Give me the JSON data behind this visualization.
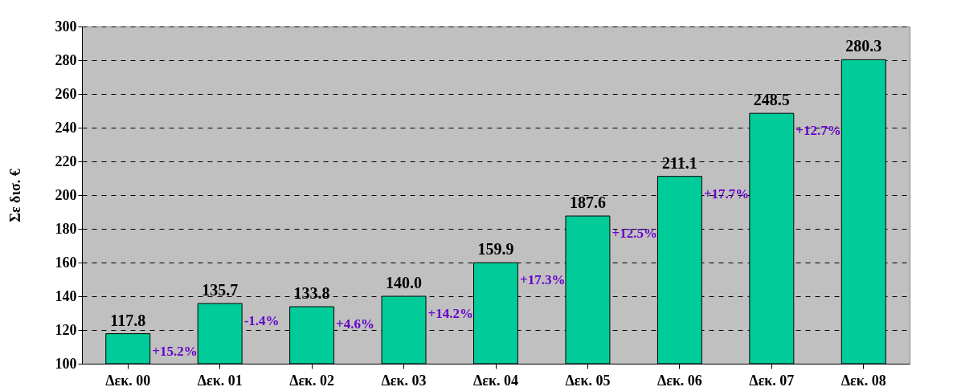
{
  "chart_data": {
    "type": "bar",
    "ylabel": "Σε δισ. €",
    "categories": [
      "Δεκ. 00",
      "Δεκ. 01",
      "Δεκ. 02",
      "Δεκ. 03",
      "Δεκ. 04",
      "Δεκ. 05",
      "Δεκ. 06",
      "Δεκ. 07",
      "Δεκ. 08"
    ],
    "values": [
      117.8,
      135.7,
      133.8,
      140.0,
      159.9,
      187.6,
      211.1,
      248.5,
      280.3
    ],
    "value_labels": [
      "117.8",
      "135.7",
      "133.8",
      "140.0",
      "159.9",
      "187.6",
      "211.1",
      "248.5",
      "280.3"
    ],
    "color": "#00cc99",
    "ylim": [
      100,
      300
    ],
    "yticks": [
      100,
      120,
      140,
      160,
      180,
      200,
      220,
      240,
      260,
      280,
      300
    ],
    "grid": "y",
    "annotations": [
      "+15.2%",
      "-1.4%",
      "+4.6%",
      "+14.2%",
      "+17.3%",
      "+12.5%",
      "+17.7%",
      "+12.7%"
    ]
  }
}
